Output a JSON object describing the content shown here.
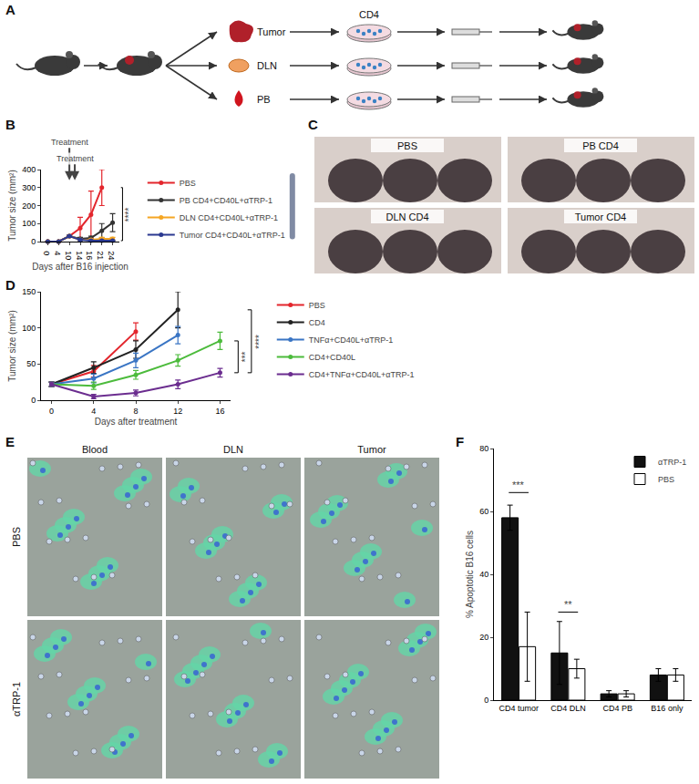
{
  "panel_labels": [
    "A",
    "B",
    "C",
    "D",
    "E",
    "F"
  ],
  "schematic": {
    "labels": {
      "tumor": "Tumor",
      "dln": "DLN",
      "pb": "PB",
      "cd4": "CD4"
    }
  },
  "photos": {
    "labels": [
      "PBS",
      "PB CD4",
      "DLN CD4",
      "Tumor CD4"
    ]
  },
  "micrographs": {
    "columns": [
      "Blood",
      "DLN",
      "Tumor"
    ],
    "rows": [
      "PBS",
      "αTRP-1"
    ]
  },
  "chart_data": [
    {
      "type": "line",
      "x_title": "Days after B16 injection",
      "y_title": "Tumor size (mm²)",
      "categories": [
        "0",
        "4",
        "10",
        "14",
        "16",
        "21",
        "24"
      ],
      "ylim": [
        0,
        400
      ],
      "yticks": [
        0,
        100,
        200,
        300,
        400
      ],
      "grid": false,
      "legend": "right",
      "marker": "circle",
      "series": [
        {
          "name": "PBS",
          "color": "#e3262d",
          "values": [
            0,
            0,
            30,
            75,
            150,
            300,
            null
          ],
          "errors": [
            0,
            0,
            5,
            60,
            130,
            100,
            null
          ]
        },
        {
          "name": "PB CD4+CD40L+αTRP-1",
          "color": "#333333",
          "values": [
            0,
            0,
            30,
            15,
            20,
            60,
            105
          ],
          "errors": [
            0,
            0,
            5,
            8,
            10,
            40,
            50
          ]
        },
        {
          "name": "DLN CD4+CD40L+αTRP-1",
          "color": "#f5a623",
          "values": [
            0,
            0,
            30,
            10,
            10,
            15,
            15
          ],
          "errors": [
            0,
            0,
            5,
            5,
            5,
            8,
            8
          ]
        },
        {
          "name": "Tumor CD4+CD40L+αTRP-1",
          "color": "#2b3990",
          "values": [
            0,
            0,
            30,
            10,
            5,
            5,
            5
          ],
          "errors": [
            0,
            0,
            5,
            5,
            3,
            3,
            3
          ]
        }
      ],
      "annotations": [
        {
          "text": "Treatment",
          "x": 2,
          "y": 340
        },
        {
          "text": "Treatment",
          "x": 2.5,
          "y": 340
        }
      ],
      "significance": [
        {
          "text": "****",
          "y0": 5,
          "y1": 300
        }
      ]
    },
    {
      "type": "line",
      "x_title": "Days after treatment",
      "y_title": "Tumor size (mm²)",
      "x": [
        0,
        4,
        8,
        12,
        16
      ],
      "xlim": [
        -1,
        17
      ],
      "xticks": [
        0,
        4,
        8,
        12,
        16
      ],
      "ylim": [
        0,
        150
      ],
      "yticks": [
        0,
        50,
        100,
        150
      ],
      "grid": false,
      "legend": "right",
      "marker": "circle",
      "series": [
        {
          "name": "PBS",
          "color": "#e3262d",
          "values": [
            22,
            40,
            95,
            null,
            null
          ],
          "errors": [
            3,
            8,
            12,
            null,
            null
          ]
        },
        {
          "name": "CD4",
          "color": "#222222",
          "values": [
            22,
            45,
            70,
            125,
            null
          ],
          "errors": [
            3,
            8,
            12,
            25,
            null
          ]
        },
        {
          "name": "TNFα+CD40L+αTRP-1",
          "color": "#3a75c4",
          "values": [
            22,
            30,
            55,
            90,
            null
          ],
          "errors": [
            3,
            6,
            10,
            12,
            null
          ]
        },
        {
          "name": "CD4+CD40L",
          "color": "#4cbb3c",
          "values": [
            22,
            20,
            35,
            55,
            82
          ],
          "errors": [
            3,
            5,
            6,
            8,
            12
          ]
        },
        {
          "name": "CD4+TNFα+CD40L+αTRP-1",
          "color": "#6b2d8f",
          "values": [
            22,
            5,
            10,
            22,
            38
          ],
          "errors": [
            3,
            3,
            4,
            6,
            6
          ]
        }
      ],
      "significance": [
        {
          "text": "****",
          "y0": 38,
          "y1": 125
        },
        {
          "text": "***",
          "y0": 38,
          "y1": 82
        }
      ]
    },
    {
      "type": "bar",
      "y_title": "% Apoptotic B16 cells",
      "categories": [
        "CD4 tumor",
        "CD4 DLN",
        "CD4 PB",
        "B16 only"
      ],
      "ylim": [
        0,
        80
      ],
      "yticks": [
        0,
        20,
        40,
        60,
        80
      ],
      "grid": false,
      "legend": "top right",
      "series": [
        {
          "name": "αTRP-1",
          "color": "#111111",
          "values": [
            58,
            15,
            2,
            8
          ],
          "errors": [
            4,
            10,
            1,
            2
          ]
        },
        {
          "name": "PBS",
          "color": "#ffffff",
          "values": [
            17,
            10,
            2,
            8
          ],
          "errors": [
            11,
            3,
            1,
            2
          ]
        }
      ],
      "annotations": [
        {
          "text": "***",
          "x": 0,
          "y": 66
        },
        {
          "text": "**",
          "x": 1,
          "y": 28
        }
      ]
    }
  ]
}
